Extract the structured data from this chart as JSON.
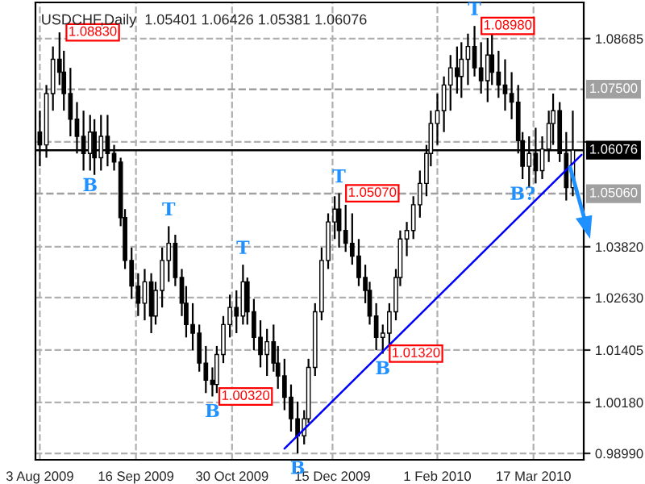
{
  "chart_data": {
    "type": "candlestick",
    "title": "USDCHF,Daily  1.05401 1.06426 1.05381 1.06076",
    "x": [
      "2009-08-03",
      "2009-08-06",
      "2009-08-09",
      "2009-08-12",
      "2009-08-14",
      "2009-08-17",
      "2009-08-20",
      "2009-08-23",
      "2009-08-26",
      "2009-08-28",
      "2009-08-31",
      "2009-09-03",
      "2009-09-06",
      "2009-09-09",
      "2009-09-11",
      "2009-09-14",
      "2009-09-17",
      "2009-09-20",
      "2009-09-23",
      "2009-09-25",
      "2009-09-28",
      "2009-10-01",
      "2009-10-04",
      "2009-10-07",
      "2009-10-09",
      "2009-10-12",
      "2009-10-15",
      "2009-10-18",
      "2009-10-21",
      "2009-10-23",
      "2009-10-26",
      "2009-10-29",
      "2009-11-01",
      "2009-11-04",
      "2009-11-06",
      "2009-11-09",
      "2009-11-12",
      "2009-11-15",
      "2009-11-18",
      "2009-11-20",
      "2009-11-23",
      "2009-11-26",
      "2009-11-29",
      "2009-12-02",
      "2009-12-04",
      "2009-12-07",
      "2009-12-10",
      "2009-12-13",
      "2009-12-16",
      "2009-12-18",
      "2009-12-21",
      "2009-12-24",
      "2009-12-27",
      "2009-12-30",
      "2010-01-01",
      "2010-01-04",
      "2010-01-07",
      "2010-01-10",
      "2010-01-13",
      "2010-01-15",
      "2010-01-18",
      "2010-01-21",
      "2010-01-24",
      "2010-01-27",
      "2010-01-29",
      "2010-02-01",
      "2010-02-04",
      "2010-02-07",
      "2010-02-10",
      "2010-02-12",
      "2010-02-15",
      "2010-02-18",
      "2010-02-21",
      "2010-02-24",
      "2010-02-26",
      "2010-03-01",
      "2010-03-04",
      "2010-03-07",
      "2010-03-10",
      "2010-03-12",
      "2010-03-15",
      "2010-03-18",
      "2010-03-21",
      "2010-03-24",
      "2010-03-26",
      "2010-03-29",
      "2010-04-01",
      "2010-04-04"
    ],
    "ohlc": [
      [
        1.065,
        1.07,
        1.057,
        1.062
      ],
      [
        1.062,
        1.076,
        1.059,
        1.074
      ],
      [
        1.074,
        1.085,
        1.07,
        1.082
      ],
      [
        1.082,
        1.0883,
        1.076,
        1.079
      ],
      [
        1.079,
        1.084,
        1.07,
        1.074
      ],
      [
        1.074,
        1.08,
        1.064,
        1.068
      ],
      [
        1.068,
        1.072,
        1.06,
        1.064
      ],
      [
        1.064,
        1.07,
        1.056,
        1.06
      ],
      [
        1.06,
        1.069,
        1.056,
        1.065
      ],
      [
        1.065,
        1.068,
        1.055,
        1.059
      ],
      [
        1.059,
        1.069,
        1.056,
        1.064
      ],
      [
        1.064,
        1.069,
        1.057,
        1.06
      ],
      [
        1.06,
        1.062,
        1.056,
        1.058
      ],
      [
        1.058,
        1.059,
        1.043,
        1.045
      ],
      [
        1.045,
        1.047,
        1.033,
        1.035
      ],
      [
        1.035,
        1.038,
        1.026,
        1.029
      ],
      [
        1.029,
        1.032,
        1.022,
        1.025
      ],
      [
        1.025,
        1.033,
        1.021,
        1.03
      ],
      [
        1.03,
        1.032,
        1.018,
        1.022
      ],
      [
        1.022,
        1.03,
        1.02,
        1.028
      ],
      [
        1.028,
        1.038,
        1.024,
        1.035
      ],
      [
        1.035,
        1.043,
        1.03,
        1.039
      ],
      [
        1.039,
        1.041,
        1.029,
        1.031
      ],
      [
        1.031,
        1.033,
        1.022,
        1.025
      ],
      [
        1.025,
        1.029,
        1.017,
        1.02
      ],
      [
        1.02,
        1.025,
        1.014,
        1.018
      ],
      [
        1.018,
        1.02,
        1.009,
        1.011
      ],
      [
        1.011,
        1.015,
        1.004,
        1.007
      ],
      [
        1.007,
        1.01,
        1.0032,
        1.006
      ],
      [
        1.006,
        1.015,
        1.004,
        1.013
      ],
      [
        1.013,
        1.022,
        1.011,
        1.02
      ],
      [
        1.02,
        1.027,
        1.017,
        1.024
      ],
      [
        1.024,
        1.028,
        1.018,
        1.022
      ],
      [
        1.022,
        1.034,
        1.02,
        1.03
      ],
      [
        1.03,
        1.031,
        1.02,
        1.023
      ],
      [
        1.023,
        1.026,
        1.014,
        1.017
      ],
      [
        1.017,
        1.021,
        1.01,
        1.013
      ],
      [
        1.013,
        1.019,
        1.008,
        1.016
      ],
      [
        1.016,
        1.02,
        1.009,
        1.011
      ],
      [
        1.011,
        1.015,
        1.005,
        1.008
      ],
      [
        1.008,
        1.012,
        1.0,
        1.003
      ],
      [
        1.003,
        1.006,
        0.995,
        0.998
      ],
      [
        0.998,
        1.002,
        0.9899,
        0.994
      ],
      [
        0.994,
        1.0,
        0.992,
        0.998
      ],
      [
        0.998,
        1.012,
        0.997,
        1.01
      ],
      [
        1.01,
        1.025,
        1.008,
        1.023
      ],
      [
        1.023,
        1.038,
        1.021,
        1.035
      ],
      [
        1.035,
        1.046,
        1.033,
        1.044
      ],
      [
        1.044,
        1.05,
        1.04,
        1.047
      ],
      [
        1.047,
        1.0507,
        1.038,
        1.042
      ],
      [
        1.042,
        1.048,
        1.037,
        1.039
      ],
      [
        1.039,
        1.046,
        1.034,
        1.036
      ],
      [
        1.036,
        1.04,
        1.029,
        1.031
      ],
      [
        1.031,
        1.034,
        1.025,
        1.028
      ],
      [
        1.028,
        1.03,
        1.02,
        1.022
      ],
      [
        1.022,
        1.025,
        1.014,
        1.017
      ],
      [
        1.017,
        1.02,
        1.0132,
        1.018
      ],
      [
        1.018,
        1.025,
        1.015,
        1.023
      ],
      [
        1.023,
        1.033,
        1.021,
        1.031
      ],
      [
        1.031,
        1.042,
        1.029,
        1.04
      ],
      [
        1.04,
        1.044,
        1.036,
        1.042
      ],
      [
        1.042,
        1.05,
        1.04,
        1.048
      ],
      [
        1.048,
        1.056,
        1.045,
        1.053
      ],
      [
        1.053,
        1.062,
        1.05,
        1.06
      ],
      [
        1.06,
        1.07,
        1.057,
        1.067
      ],
      [
        1.067,
        1.074,
        1.062,
        1.07
      ],
      [
        1.07,
        1.078,
        1.065,
        1.076
      ],
      [
        1.076,
        1.083,
        1.07,
        1.08
      ],
      [
        1.08,
        1.085,
        1.074,
        1.078
      ],
      [
        1.078,
        1.086,
        1.073,
        1.082
      ],
      [
        1.082,
        1.088,
        1.076,
        1.085
      ],
      [
        1.085,
        1.0898,
        1.078,
        1.08
      ],
      [
        1.08,
        1.086,
        1.074,
        1.077
      ],
      [
        1.077,
        1.087,
        1.072,
        1.083
      ],
      [
        1.083,
        1.088,
        1.076,
        1.079
      ],
      [
        1.079,
        1.084,
        1.073,
        1.076
      ],
      [
        1.076,
        1.082,
        1.07,
        1.074
      ],
      [
        1.074,
        1.079,
        1.068,
        1.072
      ],
      [
        1.072,
        1.076,
        1.06,
        1.063
      ],
      [
        1.063,
        1.065,
        1.054,
        1.057
      ],
      [
        1.057,
        1.064,
        1.052,
        1.06
      ],
      [
        1.06,
        1.066,
        1.053,
        1.056
      ],
      [
        1.056,
        1.064,
        1.054,
        1.061
      ],
      [
        1.061,
        1.07,
        1.058,
        1.067
      ],
      [
        1.067,
        1.074,
        1.062,
        1.07
      ],
      [
        1.07,
        1.072,
        1.058,
        1.06
      ],
      [
        1.06,
        1.065,
        1.049,
        1.052
      ],
      [
        1.052,
        1.07,
        1.05,
        1.0608
      ]
    ],
    "color": "#000000",
    "series": [
      {
        "type": "line",
        "color": "#0000ff",
        "x": [
          "2009-11-23",
          "2010-04-08"
        ],
        "values": [
          0.991,
          1.0597
        ]
      }
    ],
    "xlim": [
      "2009-08-01",
      "2010-04-09"
    ],
    "xticks": [
      {
        "value": "2009-08-03",
        "label": "3 Aug 2009"
      },
      {
        "value": "2009-09-16",
        "label": "16 Sep 2009"
      },
      {
        "value": "2009-10-30",
        "label": "30 Oct 2009"
      },
      {
        "value": "2009-12-15",
        "label": "15 Dec 2009"
      },
      {
        "value": "2010-02-01",
        "label": "1 Feb 2010"
      },
      {
        "value": "2010-03-17",
        "label": "17 Mar 2010"
      }
    ],
    "ylim": [
      0.9884,
      1.0953
    ],
    "yticks": [
      1.08685,
      {
        "value": 1.0627,
        "label": null
      },
      {
        "value": 1.0382,
        "label": "1.03820"
      },
      {
        "value": 1.0263,
        "label": "1.02630"
      },
      1.01405,
      {
        "value": 1.0018,
        "label": "1.00180"
      },
      {
        "value": 0.9899,
        "label": "0.98990"
      }
    ],
    "ref_lines": [
      {
        "axis": "y",
        "value": 1.075,
        "label": "1.07500",
        "color": "#a0a0a0",
        "line_style": "dashed"
      },
      {
        "axis": "y",
        "value": 1.0506,
        "label": "1.05060",
        "color": "#a0a0a0",
        "line_style": "dashed"
      },
      {
        "axis": "y",
        "value": 1.06076,
        "label": "1.06076",
        "color": "#000000",
        "line_style": "solid"
      }
    ],
    "annotations": [
      {
        "text": "1.08830",
        "x": "2009-08-12",
        "y": 1.0883
      },
      {
        "text": "B",
        "x": "2009-08-26",
        "y": 1.056
      },
      {
        "text": "T",
        "x": "2009-10-01",
        "y": 1.043
      },
      {
        "text": "T",
        "x": "2009-11-04",
        "y": 1.034
      },
      {
        "text": "1.00320",
        "x": "2009-10-21",
        "y": 1.0032
      },
      {
        "text": "B",
        "x": "2009-10-21",
        "y": 1.0032
      },
      {
        "text": "B",
        "x": "2009-11-29",
        "y": 0.9899
      },
      {
        "text": "1.05070",
        "x": "2009-12-18",
        "y": 1.0507
      },
      {
        "text": "T",
        "x": "2009-12-18",
        "y": 1.0507
      },
      {
        "text": "1.01320",
        "x": "2010-01-07",
        "y": 1.0132
      },
      {
        "text": "B",
        "x": "2010-01-07",
        "y": 1.0132
      },
      {
        "text": "1.08980",
        "x": "2010-02-18",
        "y": 1.0898
      },
      {
        "text": "T",
        "x": "2010-02-18",
        "y": 1.0898
      },
      {
        "text": "B?",
        "x": "2010-03-12",
        "y": 1.054
      }
    ],
    "grid": true
  }
}
